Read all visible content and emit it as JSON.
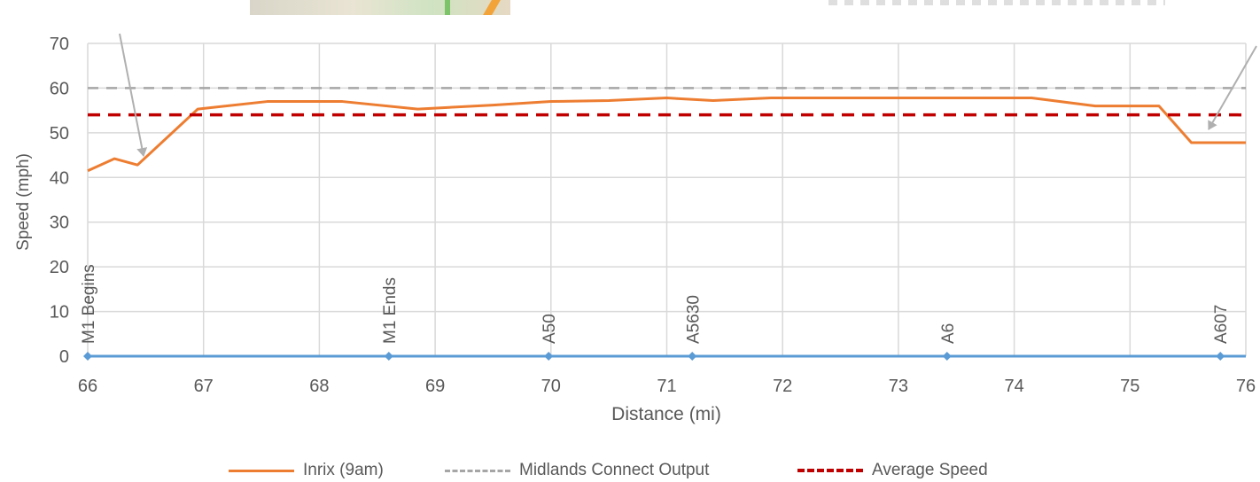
{
  "chart_data": {
    "type": "line",
    "xlabel": "Distance (mi)",
    "ylabel": "Speed (mph)",
    "xlim": [
      66,
      76
    ],
    "ylim": [
      0,
      70
    ],
    "x_ticks": [
      "66",
      "67",
      "68",
      "69",
      "70",
      "71",
      "72",
      "73",
      "74",
      "75",
      "76"
    ],
    "y_ticks": [
      "0",
      "10",
      "20",
      "30",
      "40",
      "50",
      "60",
      "70"
    ],
    "grid": true,
    "legend_position": "bottom",
    "series": [
      {
        "name": "Inrix (9am)",
        "style": "solid",
        "color": "#ed7d31",
        "x": [
          66.0,
          66.23,
          66.43,
          66.95,
          67.55,
          68.2,
          68.85,
          69.5,
          70.0,
          70.5,
          71.0,
          71.4,
          71.9,
          72.5,
          73.0,
          73.5,
          74.15,
          74.7,
          75.25,
          75.53,
          76.0
        ],
        "y": [
          41.5,
          44.2,
          42.8,
          55.3,
          57.0,
          57.0,
          55.3,
          56.2,
          57.0,
          57.2,
          57.8,
          57.2,
          57.8,
          57.8,
          57.8,
          57.8,
          57.8,
          56.0,
          56.0,
          47.8,
          47.8
        ]
      },
      {
        "name": "Midlands Connect Output",
        "style": "dashed",
        "color": "#a6a6a6",
        "x": [
          66,
          76
        ],
        "y": [
          60,
          60
        ]
      },
      {
        "name": "Average Speed",
        "style": "dashed",
        "color": "#c00000",
        "x": [
          66,
          76
        ],
        "y": [
          54,
          54
        ]
      }
    ],
    "junctions": {
      "color": "#5b9bd5",
      "points": [
        {
          "label": "M1 Begins",
          "x": 66.0
        },
        {
          "label": "M1 Ends",
          "x": 68.6
        },
        {
          "label": "A50",
          "x": 69.98
        },
        {
          "label": "A5630",
          "x": 71.22
        },
        {
          "label": "A6",
          "x": 73.42
        },
        {
          "label": "A607",
          "x": 75.78
        }
      ]
    }
  }
}
